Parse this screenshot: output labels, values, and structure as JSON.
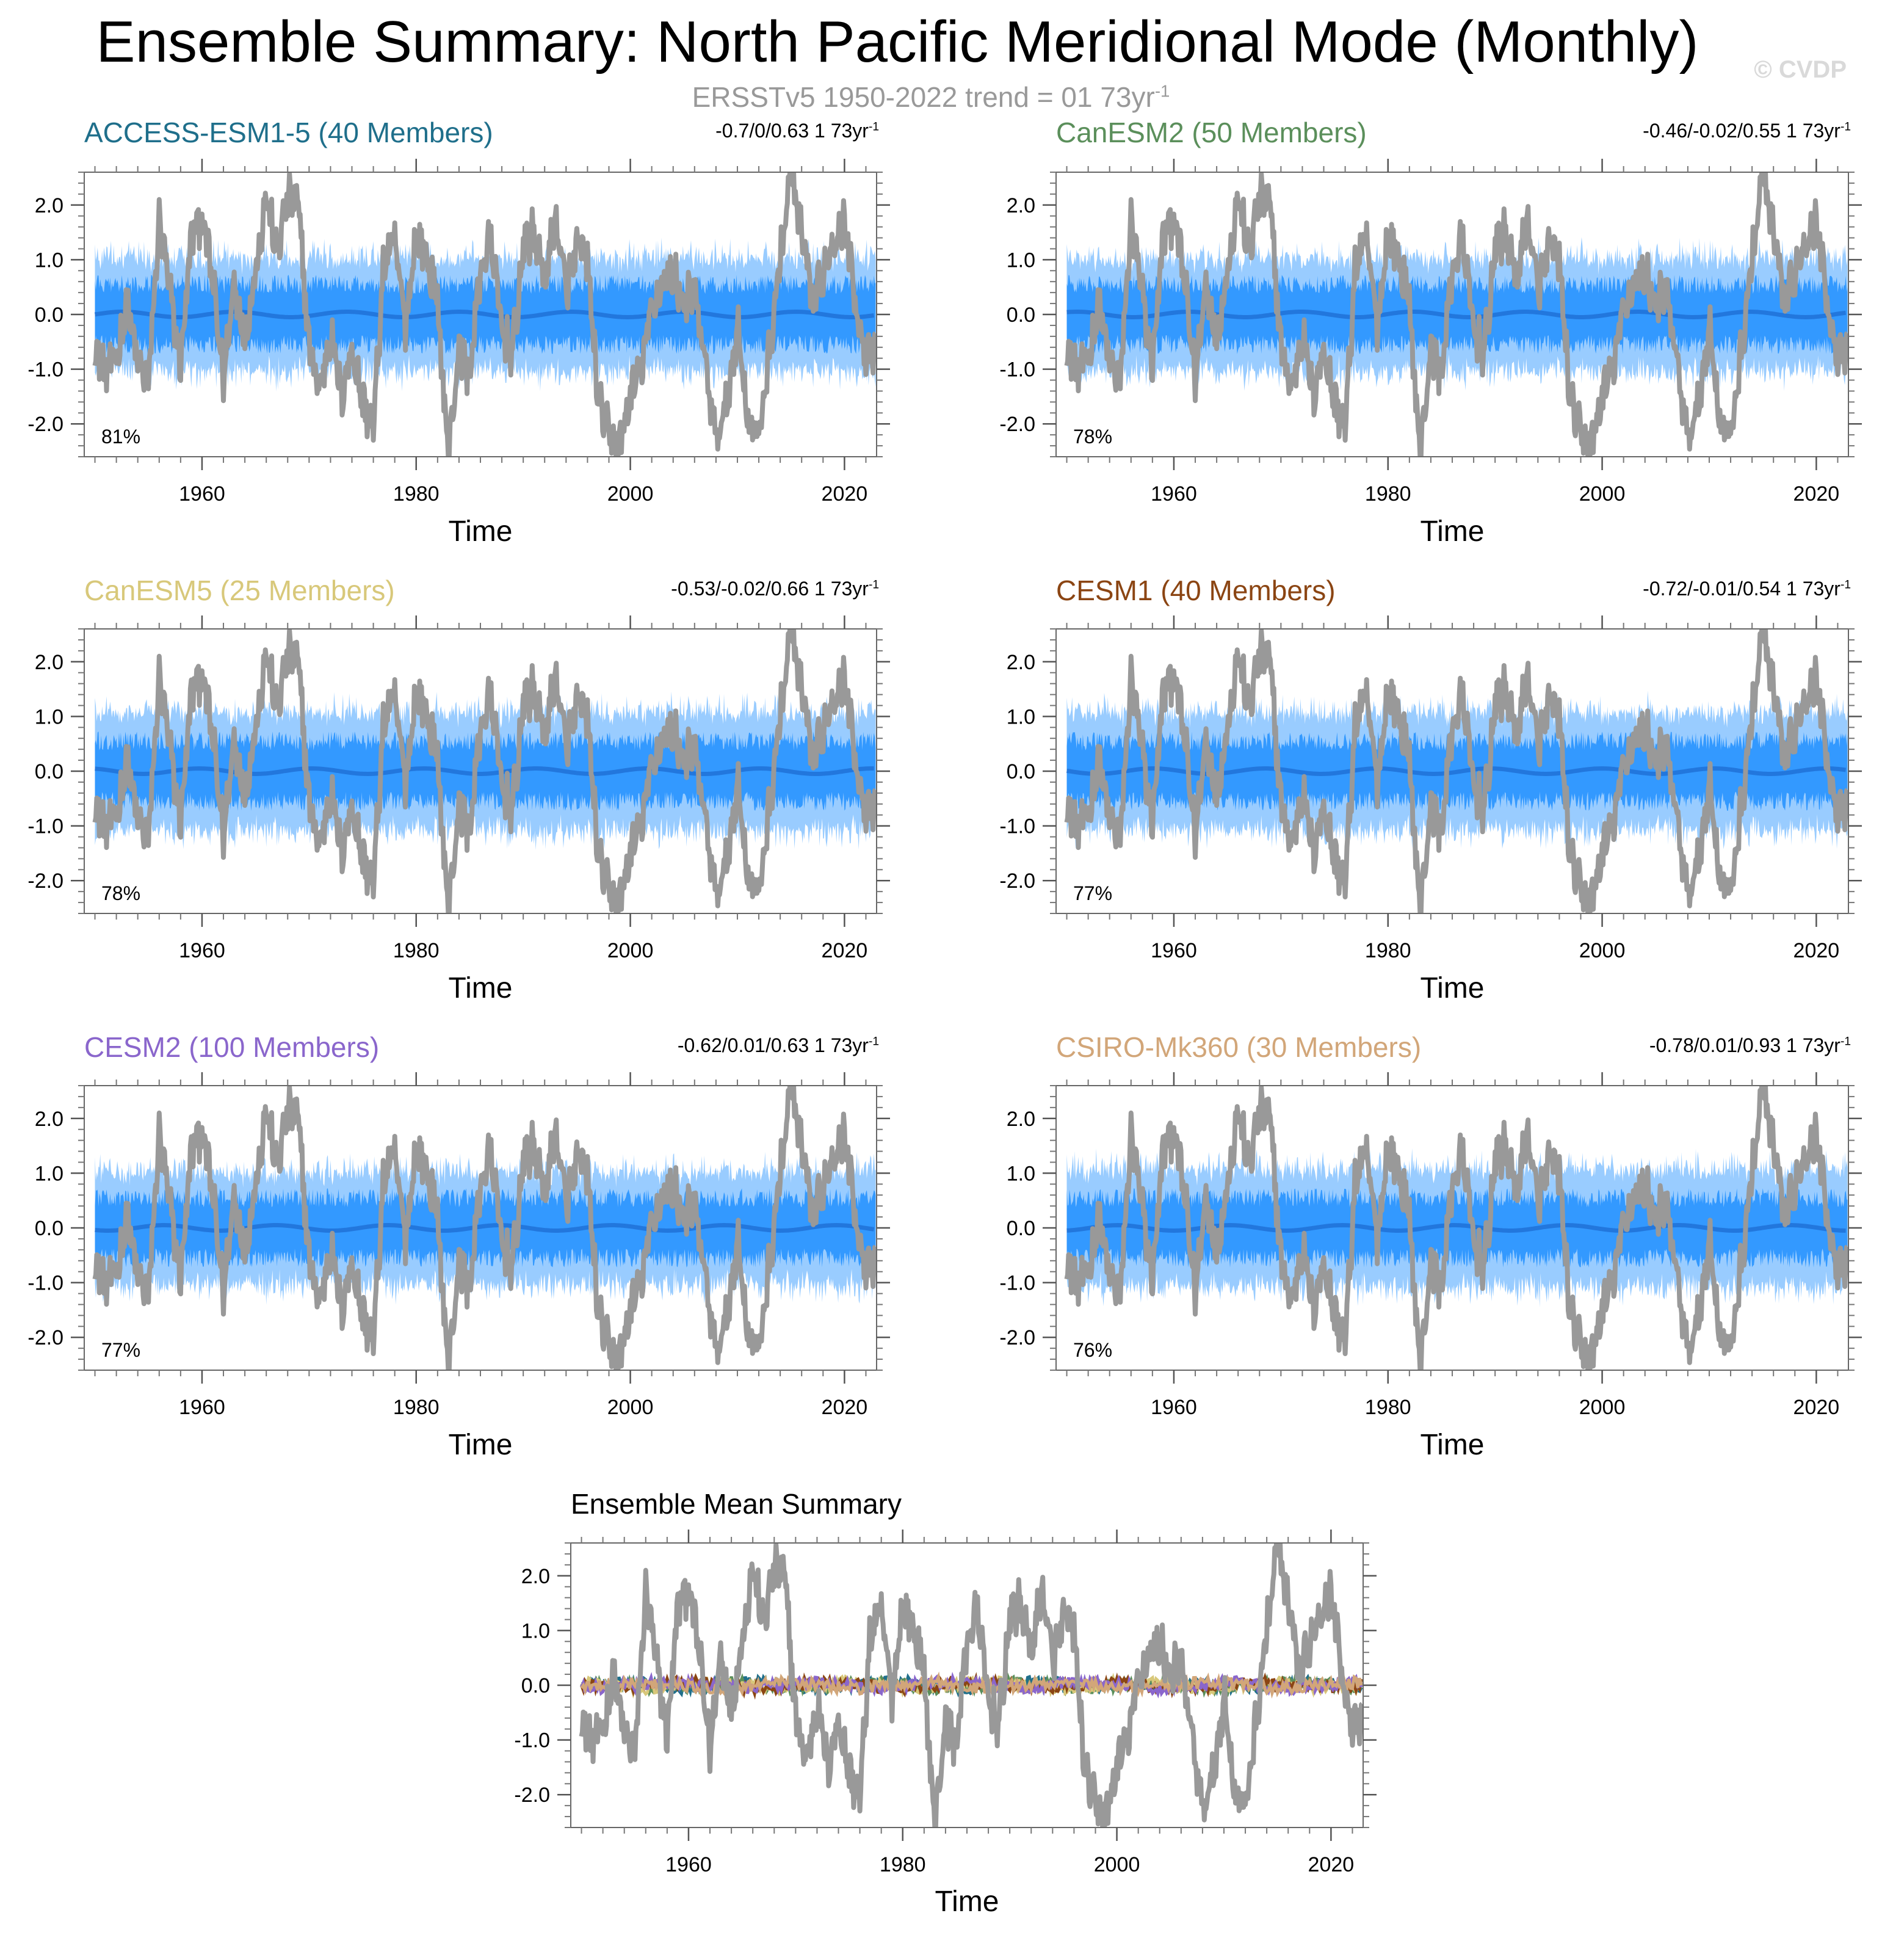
{
  "title": "Ensemble Summary: North Pacific Meridional Mode (Monthly)",
  "subtitle_main": "ERSSTv5 1950-2022 trend = 01 73yr",
  "subtitle_sup": "-1",
  "watermark": "© CVDP",
  "colors": {
    "obs": "#999999",
    "band_outer": "#99ccff",
    "band_inner": "#3399ff",
    "ens_mean": "#2277dd",
    "axis": "#555555"
  },
  "chart_data": [
    {
      "type": "area",
      "title": "ACCESS-ESM1-5 (40 Members)",
      "title_color": "#1f6f8b",
      "stats": "-0.7/0/0.63 1 73yr",
      "stats_sup": "-1",
      "pct": "81%",
      "xlabel": "Time",
      "ylabel": "",
      "xlim": [
        1949,
        2023
      ],
      "ylim": [
        -2.6,
        2.6
      ],
      "yticks": [
        "2.0",
        "1.0",
        "0.0",
        "-1.0",
        "-2.0"
      ],
      "xticks": [
        "1960",
        "1980",
        "2000",
        "2020"
      ],
      "band_outer": [
        -1.0,
        1.0
      ],
      "band_inner": [
        -0.55,
        0.55
      ],
      "ens_mean": 0.0,
      "obs_series": "ERSSTv5"
    },
    {
      "type": "area",
      "title": "CanESM2 (50 Members)",
      "title_color": "#5b8f5b",
      "stats": "-0.46/-0.02/0.55 1 73yr",
      "stats_sup": "-1",
      "pct": "78%",
      "xlabel": "Time",
      "ylabel": "",
      "xlim": [
        1949,
        2023
      ],
      "ylim": [
        -2.6,
        2.6
      ],
      "yticks": [
        "2.0",
        "1.0",
        "0.0",
        "-1.0",
        "-2.0"
      ],
      "xticks": [
        "1960",
        "1980",
        "2000",
        "2020"
      ],
      "band_outer": [
        -1.0,
        1.0
      ],
      "band_inner": [
        -0.55,
        0.55
      ],
      "ens_mean": 0.0,
      "obs_series": "ERSSTv5"
    },
    {
      "type": "area",
      "title": "CanESM5 (25 Members)",
      "title_color": "#d8c87a",
      "stats": "-0.53/-0.02/0.66 1 73yr",
      "stats_sup": "-1",
      "pct": "78%",
      "xlabel": "Time",
      "ylabel": "",
      "xlim": [
        1949,
        2023
      ],
      "ylim": [
        -2.6,
        2.6
      ],
      "yticks": [
        "2.0",
        "1.0",
        "0.0",
        "-1.0",
        "-2.0"
      ],
      "xticks": [
        "1960",
        "1980",
        "2000",
        "2020"
      ],
      "band_outer": [
        -1.05,
        1.05
      ],
      "band_inner": [
        -0.55,
        0.55
      ],
      "ens_mean": 0.0,
      "obs_series": "ERSSTv5"
    },
    {
      "type": "area",
      "title": "CESM1 (40 Members)",
      "title_color": "#8b4513",
      "stats": "-0.72/-0.01/0.54 1 73yr",
      "stats_sup": "-1",
      "pct": "77%",
      "xlabel": "Time",
      "ylabel": "",
      "xlim": [
        1949,
        2023
      ],
      "ylim": [
        -2.6,
        2.6
      ],
      "yticks": [
        "2.0",
        "1.0",
        "0.0",
        "-1.0",
        "-2.0"
      ],
      "xticks": [
        "1960",
        "1980",
        "2000",
        "2020"
      ],
      "band_outer": [
        -1.05,
        1.05
      ],
      "band_inner": [
        -0.55,
        0.55
      ],
      "ens_mean": 0.0,
      "obs_series": "ERSSTv5"
    },
    {
      "type": "area",
      "title": "CESM2 (100 Members)",
      "title_color": "#8a66cc",
      "stats": "-0.62/0.01/0.63 1 73yr",
      "stats_sup": "-1",
      "pct": "77%",
      "xlabel": "Time",
      "ylabel": "",
      "xlim": [
        1949,
        2023
      ],
      "ylim": [
        -2.6,
        2.6
      ],
      "yticks": [
        "2.0",
        "1.0",
        "0.0",
        "-1.0",
        "-2.0"
      ],
      "xticks": [
        "1960",
        "1980",
        "2000",
        "2020"
      ],
      "band_outer": [
        -1.0,
        1.0
      ],
      "band_inner": [
        -0.55,
        0.55
      ],
      "ens_mean": 0.0,
      "obs_series": "ERSSTv5"
    },
    {
      "type": "area",
      "title": "CSIRO-Mk360 (30 Members)",
      "title_color": "#d2a679",
      "stats": "-0.78/0.01/0.93 1 73yr",
      "stats_sup": "-1",
      "pct": "76%",
      "xlabel": "Time",
      "ylabel": "",
      "xlim": [
        1949,
        2023
      ],
      "ylim": [
        -2.6,
        2.6
      ],
      "yticks": [
        "2.0",
        "1.0",
        "0.0",
        "-1.0",
        "-2.0"
      ],
      "xticks": [
        "1960",
        "1980",
        "2000",
        "2020"
      ],
      "band_outer": [
        -1.05,
        1.05
      ],
      "band_inner": [
        -0.55,
        0.55
      ],
      "ens_mean": 0.0,
      "obs_series": "ERSSTv5"
    },
    {
      "type": "line",
      "title": "Ensemble Mean Summary",
      "title_color": "#000000",
      "stats": "",
      "stats_sup": "",
      "pct": "",
      "xlabel": "Time",
      "ylabel": "",
      "xlim": [
        1949,
        2023
      ],
      "ylim": [
        -2.6,
        2.6
      ],
      "yticks": [
        "2.0",
        "1.0",
        "0.0",
        "-1.0",
        "-2.0"
      ],
      "xticks": [
        "1960",
        "1980",
        "2000",
        "2020"
      ],
      "mean_series_colors": [
        "#1f6f8b",
        "#5b8f5b",
        "#d8c87a",
        "#8b4513",
        "#8a66cc",
        "#d2a679"
      ],
      "obs_series": "ERSSTv5"
    }
  ],
  "obs_keypoints": [
    [
      1950,
      -0.6
    ],
    [
      1951,
      -1.0
    ],
    [
      1952,
      -0.8
    ],
    [
      1953,
      0.2
    ],
    [
      1954,
      -0.9
    ],
    [
      1955,
      -1.2
    ],
    [
      1956,
      1.7
    ],
    [
      1957,
      0.4
    ],
    [
      1958,
      -0.9
    ],
    [
      1959,
      1.4
    ],
    [
      1960,
      1.8
    ],
    [
      1961,
      0.6
    ],
    [
      1962,
      -1.2
    ],
    [
      1963,
      0.6
    ],
    [
      1964,
      -0.4
    ],
    [
      1965,
      0.8
    ],
    [
      1966,
      2.2
    ],
    [
      1967,
      1.1
    ],
    [
      1968,
      2.1
    ],
    [
      1969,
      2.0
    ],
    [
      1970,
      -0.6
    ],
    [
      1971,
      -1.4
    ],
    [
      1972,
      -0.3
    ],
    [
      1973,
      -1.5
    ],
    [
      1974,
      -0.6
    ],
    [
      1975,
      -1.6
    ],
    [
      1976,
      -2.1
    ],
    [
      1977,
      1.0
    ],
    [
      1978,
      1.3
    ],
    [
      1979,
      -0.2
    ],
    [
      1980,
      1.5
    ],
    [
      1981,
      1.0
    ],
    [
      1982,
      0.2
    ],
    [
      1983,
      -2.6
    ],
    [
      1984,
      -0.6
    ],
    [
      1985,
      -1.1
    ],
    [
      1986,
      0.8
    ],
    [
      1987,
      1.4
    ],
    [
      1988,
      -0.3
    ],
    [
      1989,
      -0.7
    ],
    [
      1990,
      1.2
    ],
    [
      1991,
      1.5
    ],
    [
      1992,
      0.6
    ],
    [
      1993,
      1.8
    ],
    [
      1994,
      0.4
    ],
    [
      1995,
      1.2
    ],
    [
      1996,
      1.0
    ],
    [
      1997,
      -1.6
    ],
    [
      1998,
      -2.2
    ],
    [
      1999,
      -2.4
    ],
    [
      2000,
      -1.5
    ],
    [
      2001,
      -1.0
    ],
    [
      2002,
      0.1
    ],
    [
      2003,
      0.6
    ],
    [
      2004,
      0.8
    ],
    [
      2005,
      0.2
    ],
    [
      2006,
      0.4
    ],
    [
      2007,
      -0.9
    ],
    [
      2008,
      -2.3
    ],
    [
      2009,
      -1.7
    ],
    [
      2010,
      -0.2
    ],
    [
      2011,
      -1.9
    ],
    [
      2012,
      -2.3
    ],
    [
      2013,
      -0.6
    ],
    [
      2014,
      1.0
    ],
    [
      2015,
      2.6
    ],
    [
      2016,
      1.4
    ],
    [
      2017,
      0.2
    ],
    [
      2018,
      0.8
    ],
    [
      2019,
      1.4
    ],
    [
      2020,
      1.7
    ],
    [
      2021,
      0.3
    ],
    [
      2022,
      -0.8
    ]
  ]
}
